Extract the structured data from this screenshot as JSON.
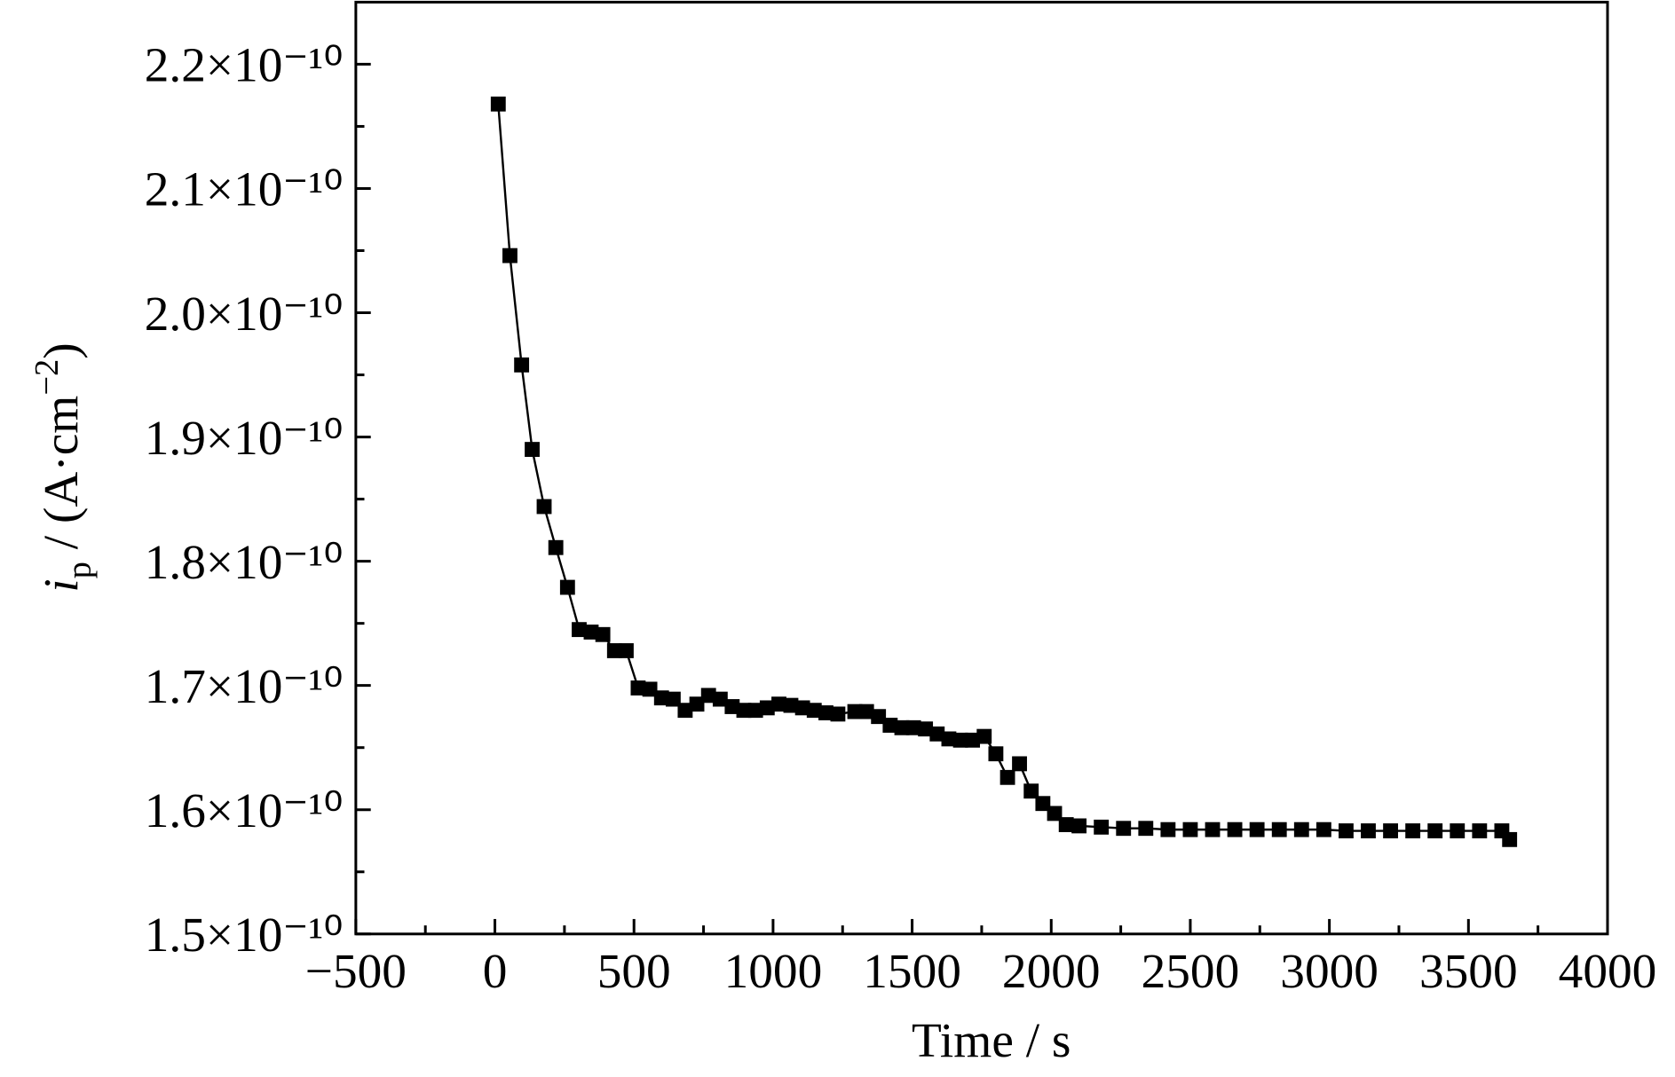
{
  "chart_data": {
    "type": "line",
    "xlabel": "Time / s",
    "ylabel": [
      "i",
      "p",
      " / (A·cm",
      "−2",
      ")"
    ],
    "xlim": [
      -500,
      4000
    ],
    "xticks": [
      {
        "value": -500,
        "label": "−500"
      },
      0,
      500,
      1000,
      1500,
      2000,
      2500,
      3000,
      3500,
      4000
    ],
    "xminorticks": [
      -250,
      250,
      750,
      1250,
      1750,
      2250,
      2750,
      3250,
      3750
    ],
    "ylim": [
      1.5e-10,
      2.25e-10
    ],
    "yticks": [
      {
        "value": 1.5e-10,
        "label": "1.5×10⁻¹⁰"
      },
      {
        "value": 1.6e-10,
        "label": "1.6×10⁻¹⁰"
      },
      {
        "value": 1.7e-10,
        "label": "1.7×10⁻¹⁰"
      },
      {
        "value": 1.8e-10,
        "label": "1.8×10⁻¹⁰"
      },
      {
        "value": 1.9e-10,
        "label": "1.9×10⁻¹⁰"
      },
      {
        "value": 2e-10,
        "label": "2.0×10⁻¹⁰"
      },
      {
        "value": 2.1e-10,
        "label": "2.1×10⁻¹⁰"
      },
      {
        "value": 2.2e-10,
        "label": "2.2×10⁻¹⁰"
      }
    ],
    "yminorticks": [
      1.55e-10,
      1.65e-10,
      1.75e-10,
      1.85e-10,
      1.95e-10,
      2.05e-10,
      2.15e-10
    ],
    "x": [
      12,
      54,
      96,
      134,
      177,
      219,
      261,
      303,
      346,
      388,
      430,
      472,
      515,
      557,
      599,
      641,
      684,
      726,
      768,
      810,
      853,
      895,
      937,
      979,
      1021,
      1064,
      1106,
      1148,
      1190,
      1233,
      1294,
      1336,
      1379,
      1421,
      1463,
      1505,
      1548,
      1590,
      1632,
      1674,
      1717,
      1759,
      1801,
      1843,
      1886,
      1928,
      1970,
      2012,
      2054,
      2100,
      2180,
      2260,
      2340,
      2420,
      2500,
      2580,
      2660,
      2740,
      2820,
      2900,
      2980,
      3060,
      3140,
      3220,
      3300,
      3380,
      3460,
      3540,
      3620,
      3648
    ],
    "series": [
      {
        "color": "#000000",
        "values": [
          2.168e-10,
          2.046e-10,
          1.958e-10,
          1.89e-10,
          1.844e-10,
          1.811e-10,
          1.779e-10,
          1.745e-10,
          1.743e-10,
          1.741e-10,
          1.728e-10,
          1.728e-10,
          1.698e-10,
          1.697e-10,
          1.69e-10,
          1.689e-10,
          1.68e-10,
          1.685e-10,
          1.692e-10,
          1.689e-10,
          1.683e-10,
          1.68e-10,
          1.68e-10,
          1.682e-10,
          1.685e-10,
          1.684e-10,
          1.682e-10,
          1.68e-10,
          1.678e-10,
          1.677e-10,
          1.679e-10,
          1.679e-10,
          1.675e-10,
          1.668e-10,
          1.666e-10,
          1.666e-10,
          1.665e-10,
          1.661e-10,
          1.657e-10,
          1.656e-10,
          1.656e-10,
          1.659e-10,
          1.645e-10,
          1.626e-10,
          1.637e-10,
          1.615e-10,
          1.605e-10,
          1.597e-10,
          1.588e-10,
          1.587e-10,
          1.586e-10,
          1.585e-10,
          1.585e-10,
          1.584e-10,
          1.584e-10,
          1.584e-10,
          1.584e-10,
          1.584e-10,
          1.584e-10,
          1.584e-10,
          1.584e-10,
          1.583e-10,
          1.583e-10,
          1.583e-10,
          1.583e-10,
          1.583e-10,
          1.583e-10,
          1.583e-10,
          1.583e-10,
          1.576e-10
        ]
      }
    ]
  }
}
